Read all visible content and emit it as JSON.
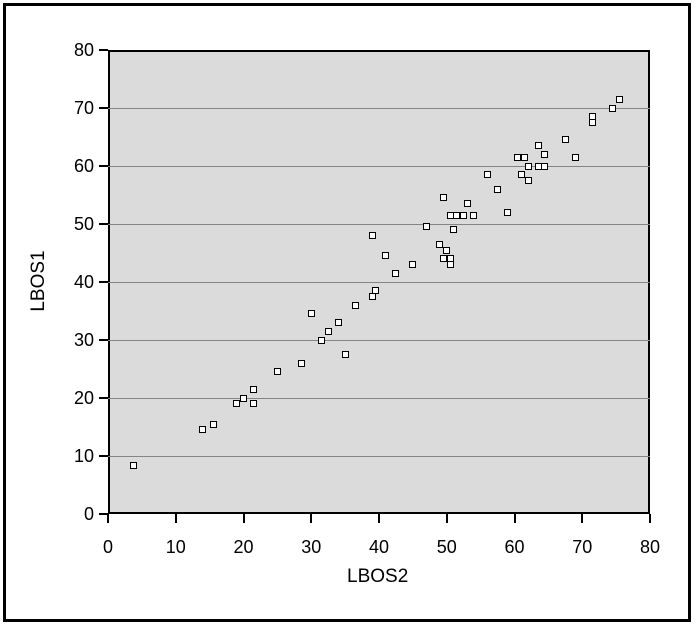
{
  "figure": {
    "xlabel": "LBOS2",
    "ylabel": "LBOS1"
  },
  "colors": {
    "page_background": "#ffffff",
    "outer_frame": "#000000",
    "plot_background": "#dbdbdb",
    "gridline": "#848484",
    "axis_frame": "#000000",
    "tick": "#000000",
    "marker_fill": "#ffffff",
    "marker_border": "#000000",
    "text": "#000000"
  },
  "chart_data": {
    "type": "scatter",
    "title": "",
    "xlabel": "LBOS2",
    "ylabel": "LBOS1",
    "xlim": [
      0,
      80
    ],
    "ylim": [
      0,
      80
    ],
    "xticks": [
      0,
      10,
      20,
      30,
      40,
      50,
      60,
      70,
      80
    ],
    "yticks": [
      0,
      10,
      20,
      30,
      40,
      50,
      60,
      70,
      80
    ],
    "grid": "horizontal-only",
    "legend": "none",
    "marker": "open-square",
    "points": [
      [
        3.7,
        8.3
      ],
      [
        14,
        14.5
      ],
      [
        15.5,
        15.5
      ],
      [
        19,
        19
      ],
      [
        20,
        20
      ],
      [
        21.5,
        21.5
      ],
      [
        21.5,
        19
      ],
      [
        25,
        24.5
      ],
      [
        28.5,
        26
      ],
      [
        30,
        34.5
      ],
      [
        31.5,
        30
      ],
      [
        32.5,
        31.5
      ],
      [
        34,
        33
      ],
      [
        35,
        27.5
      ],
      [
        36.5,
        36
      ],
      [
        39,
        37.5
      ],
      [
        39.5,
        38.5
      ],
      [
        39,
        48
      ],
      [
        41,
        44.5
      ],
      [
        42.5,
        41.5
      ],
      [
        45,
        43
      ],
      [
        47,
        49.5
      ],
      [
        49,
        46.5
      ],
      [
        50,
        45.5
      ],
      [
        49.5,
        44
      ],
      [
        50.5,
        44
      ],
      [
        50.5,
        43
      ],
      [
        49.5,
        54.5
      ],
      [
        51,
        49
      ],
      [
        50.5,
        51.5
      ],
      [
        51.5,
        51.5
      ],
      [
        52.5,
        51.5
      ],
      [
        54,
        51.5
      ],
      [
        53,
        53.5
      ],
      [
        56,
        58.5
      ],
      [
        57.5,
        56
      ],
      [
        59,
        52
      ],
      [
        60.5,
        61.5
      ],
      [
        61.5,
        61.5
      ],
      [
        61,
        58.5
      ],
      [
        62,
        60
      ],
      [
        63.5,
        60
      ],
      [
        64.5,
        60
      ],
      [
        62,
        57.5
      ],
      [
        63.5,
        63.5
      ],
      [
        64.5,
        62
      ],
      [
        67.5,
        64.5
      ],
      [
        69,
        61.5
      ],
      [
        71.5,
        68.5
      ],
      [
        71.5,
        67.5
      ],
      [
        74.5,
        70
      ],
      [
        75.5,
        71.5
      ]
    ]
  }
}
